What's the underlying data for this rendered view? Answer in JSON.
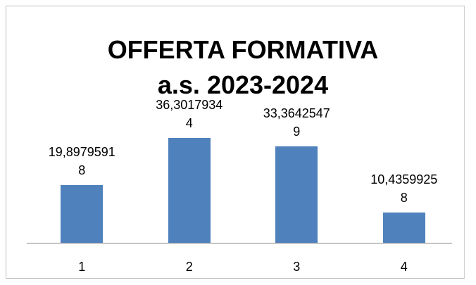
{
  "chart_data": {
    "type": "bar",
    "title": "OFFERTA FORMATIVA\na.s. 2023-2024",
    "categories": [
      "1",
      "2",
      "3",
      "4"
    ],
    "values": [
      19.89795918,
      36.30179344,
      33.36425479,
      10.43599258
    ],
    "value_labels": [
      "19,89795918",
      "36,30179344",
      "33,36425479",
      "10,43599258"
    ],
    "color": "#4f81bd",
    "ylim": [
      0,
      40
    ]
  }
}
